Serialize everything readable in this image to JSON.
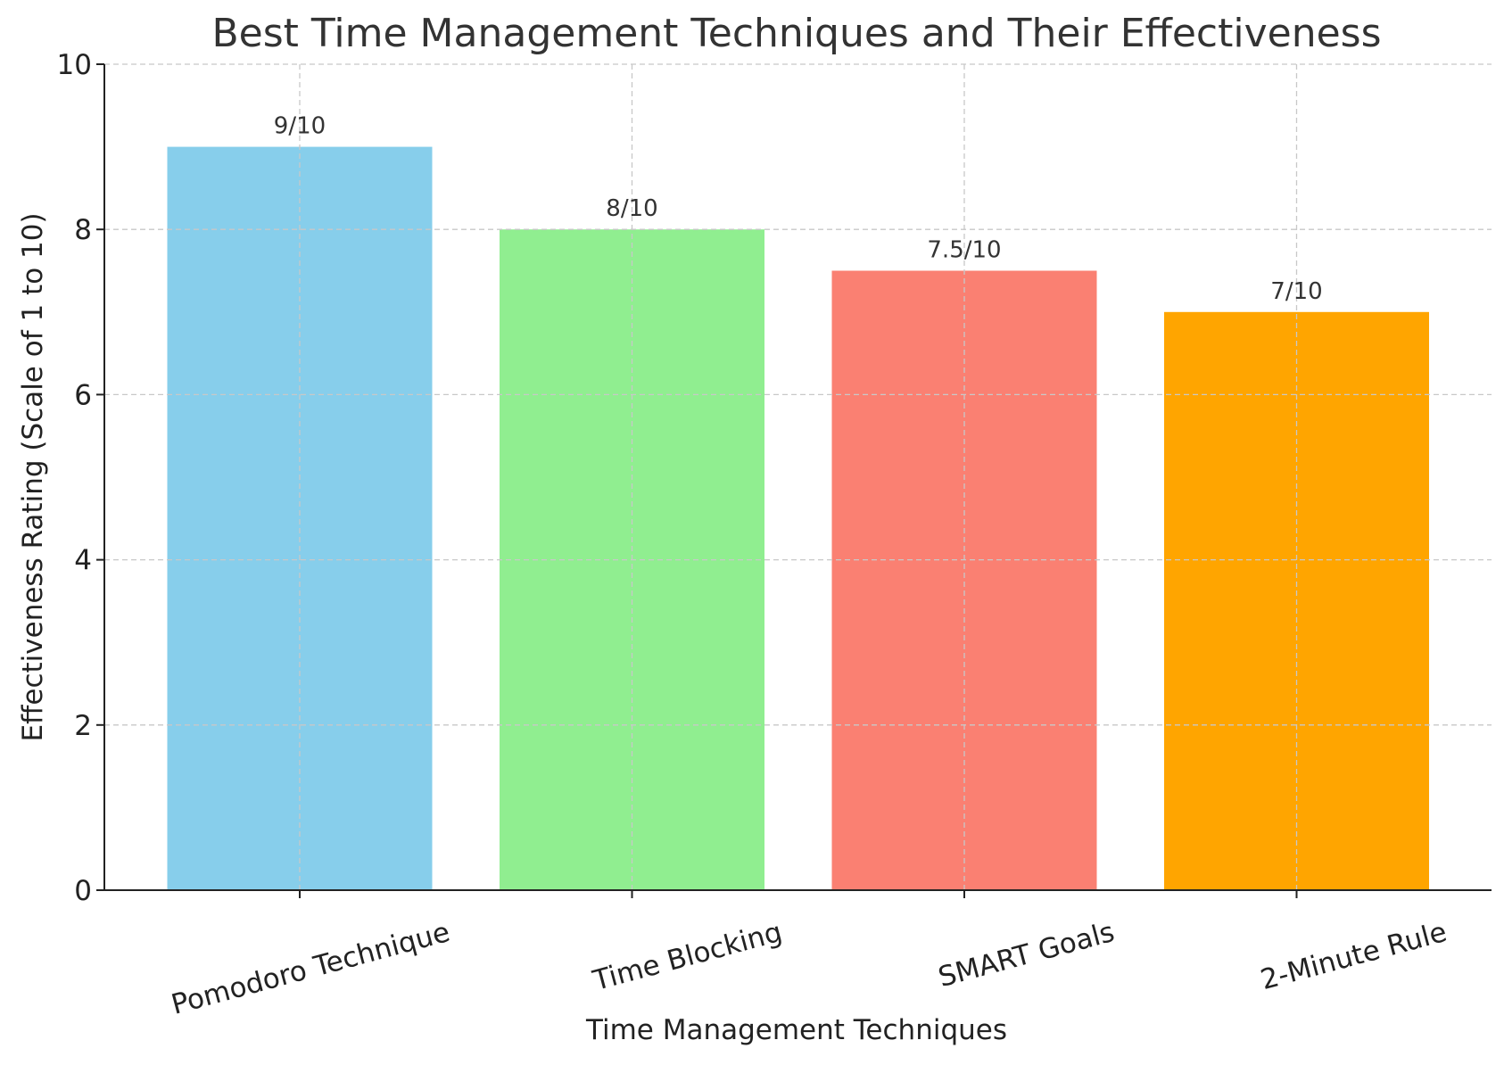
{
  "chart_data": {
    "type": "bar",
    "title": "Best Time Management Techniques and Their Effectiveness",
    "xlabel": "Time Management Techniques",
    "ylabel": "Effectiveness Rating (Scale of 1 to 10)",
    "categories": [
      "Pomodoro Technique",
      "Time Blocking",
      "SMART Goals",
      "2-Minute Rule"
    ],
    "values": [
      9,
      8,
      7.5,
      7
    ],
    "data_labels": [
      "9/10",
      "8/10",
      "7.5/10",
      "7/10"
    ],
    "colors": [
      "#87ceeb",
      "#90ee90",
      "#fa8072",
      "#ffa500"
    ],
    "ylim": [
      0,
      10
    ],
    "yticks": [
      0,
      2,
      4,
      6,
      8,
      10
    ],
    "ytick_labels": [
      "0",
      "2",
      "4",
      "6",
      "8",
      "10"
    ],
    "grid": true
  }
}
